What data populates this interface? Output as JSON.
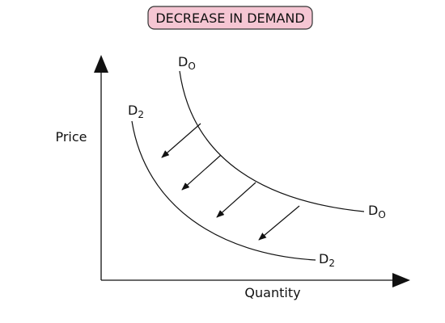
{
  "header": {
    "title": "DECREASE IN DEMAND"
  },
  "axes": {
    "y_label": "Price",
    "x_label": "Quantity"
  },
  "curves": [
    {
      "labels": [
        {
          "main": "D",
          "sub": "O"
        },
        {
          "main": "D",
          "sub": "O"
        }
      ]
    },
    {
      "labels": [
        {
          "main": "D",
          "sub": "2"
        },
        {
          "main": "D",
          "sub": "2"
        }
      ]
    }
  ]
}
